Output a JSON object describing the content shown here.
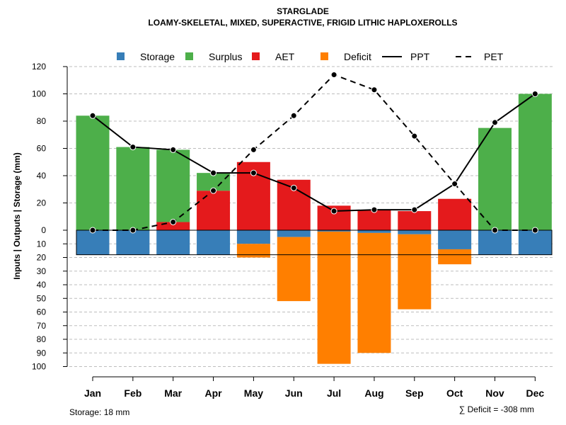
{
  "chart_data": {
    "type": "bar",
    "title": "STARGLADE",
    "subtitle": "LOAMY-SKELETAL, MIXED, SUPERACTIVE, FRIGID LITHIC HAPLOXEROLLS",
    "ylabel": "Inputs | Outputs | Storage    (mm)",
    "categories": [
      "Jan",
      "Feb",
      "Mar",
      "Apr",
      "May",
      "Jun",
      "Jul",
      "Aug",
      "Sep",
      "Oct",
      "Nov",
      "Dec"
    ],
    "y_ticks_up": [
      "120",
      "100",
      "80",
      "60",
      "40",
      "20",
      "0"
    ],
    "y_ticks_down": [
      "10",
      "20",
      "30",
      "40",
      "50",
      "60",
      "70",
      "80",
      "90",
      "100"
    ],
    "ylim_up": [
      0,
      120
    ],
    "ylim_down": [
      0,
      100
    ],
    "legend": [
      {
        "key": "storage",
        "label": "Storage",
        "kind": "box",
        "color": "#377eb8"
      },
      {
        "key": "surplus",
        "label": "Surplus",
        "kind": "box",
        "color": "#4daf4a"
      },
      {
        "key": "aet",
        "label": "AET",
        "kind": "box",
        "color": "#e41a1c"
      },
      {
        "key": "deficit",
        "label": "Deficit",
        "kind": "box",
        "color": "#ff7f00"
      },
      {
        "key": "ppt",
        "label": "PPT",
        "kind": "solid",
        "color": "#000000"
      },
      {
        "key": "pet",
        "label": "PET",
        "kind": "dashed",
        "color": "#000000"
      }
    ],
    "series": [
      {
        "name": "AET",
        "values": [
          0,
          0,
          6,
          29,
          50,
          37,
          18,
          15,
          14,
          23,
          0,
          0
        ]
      },
      {
        "name": "Surplus",
        "values": [
          84,
          61,
          53,
          13,
          0,
          0,
          0,
          0,
          0,
          0,
          75,
          100
        ]
      },
      {
        "name": "Storage",
        "values": [
          18,
          18,
          18,
          18,
          10,
          5,
          1,
          2,
          3,
          14,
          18,
          18
        ]
      },
      {
        "name": "Deficit",
        "values": [
          0,
          0,
          0,
          0,
          10,
          47,
          97,
          88,
          55,
          11,
          0,
          0
        ]
      },
      {
        "name": "PPT",
        "values": [
          84,
          61,
          59,
          42,
          42,
          31,
          14,
          15,
          15,
          34,
          79,
          100
        ]
      },
      {
        "name": "PET",
        "values": [
          0,
          0,
          6,
          29,
          59,
          84,
          114,
          103,
          69,
          34,
          0,
          0
        ]
      }
    ],
    "storage_capacity": 18,
    "footer_left": "Storage: 18 mm",
    "footer_right": "∑ Deficit = -308 mm"
  }
}
